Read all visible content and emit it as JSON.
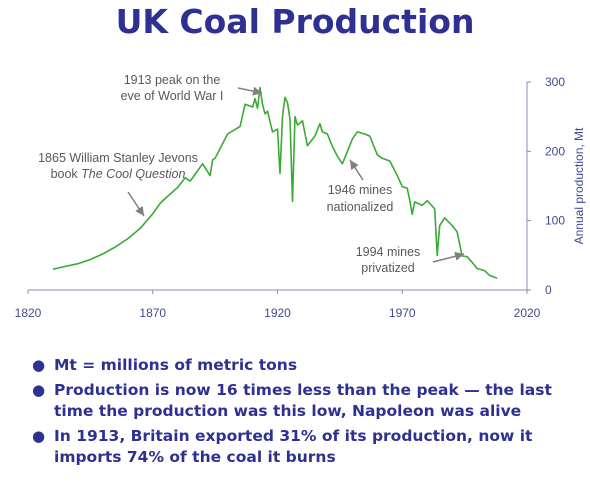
{
  "title": "UK Coal Production",
  "chart_data": {
    "type": "line",
    "title": "UK Coal Production",
    "xlabel": "",
    "ylabel": "Annual production, Mt",
    "xlim": [
      1820,
      2020
    ],
    "ylim": [
      0,
      300
    ],
    "x_ticks": [
      "1820",
      "1870",
      "1920",
      "1970",
      "2020"
    ],
    "y_ticks": [
      "0",
      "100",
      "200",
      "300"
    ],
    "grid": false,
    "y_axis_side": "right",
    "series": [
      {
        "color": "#3aaa35",
        "x": [
          1830,
          1835,
          1840,
          1845,
          1850,
          1855,
          1860,
          1865,
          1870,
          1873,
          1875,
          1880,
          1883,
          1885,
          1890,
          1893,
          1894,
          1895,
          1900,
          1905,
          1907,
          1910,
          1911,
          1912,
          1913,
          1914,
          1915,
          1916,
          1918,
          1920,
          1921,
          1922,
          1923,
          1924,
          1925,
          1926,
          1927,
          1928,
          1930,
          1932,
          1935,
          1937,
          1938,
          1940,
          1942,
          1944,
          1946,
          1948,
          1950,
          1952,
          1955,
          1957,
          1960,
          1962,
          1965,
          1968,
          1970,
          1972,
          1973,
          1974,
          1975,
          1978,
          1980,
          1983,
          1984,
          1985,
          1987,
          1990,
          1992,
          1994,
          1996,
          1998,
          2000,
          2003,
          2005,
          2008
        ],
        "values": [
          30,
          34,
          38,
          44,
          52,
          62,
          74,
          89,
          110,
          125,
          132,
          148,
          162,
          157,
          182,
          165,
          188,
          190,
          225,
          236,
          268,
          264,
          276,
          262,
          292,
          268,
          254,
          258,
          228,
          232,
          168,
          250,
          278,
          270,
          246,
          128,
          250,
          238,
          244,
          208,
          222,
          240,
          228,
          225,
          207,
          193,
          182,
          200,
          218,
          228,
          225,
          222,
          195,
          190,
          186,
          165,
          149,
          147,
          130,
          109,
          127,
          122,
          129,
          117,
          50,
          93,
          104,
          93,
          84,
          49,
          48,
          40,
          31,
          28,
          21,
          17
        ]
      }
    ],
    "annotations": [
      {
        "lines": [
          "1913 peak on the",
          "eve of World War I"
        ],
        "x": 1913,
        "y": 292
      },
      {
        "lines": [
          "1865 William Stanley Jevons",
          "book The Cool Question"
        ],
        "x": 1865,
        "y": 89
      },
      {
        "lines": [
          "1946 mines",
          "nationalized"
        ],
        "x": 1946,
        "y": 182
      },
      {
        "lines": [
          "1994 mines",
          "privatized"
        ],
        "x": 1994,
        "y": 49
      }
    ]
  },
  "bullets": [
    "Mt = millions of metric tons",
    "Production is now 16 times less than the peak — the last time the production was this low, Napoleon was alive",
    "In 1913, Britain exported 31% of its production, now it imports 74% of the coal it burns"
  ]
}
